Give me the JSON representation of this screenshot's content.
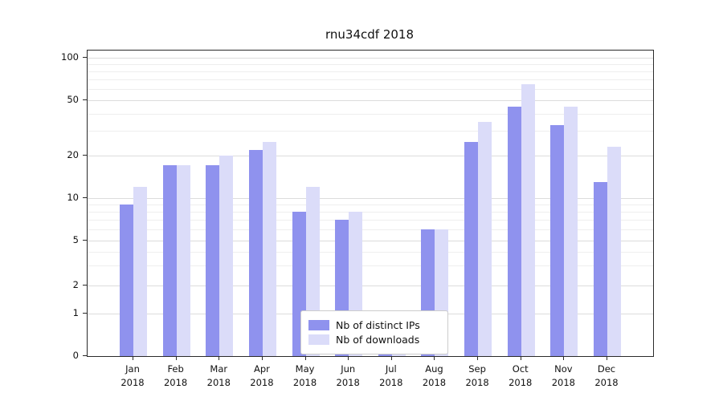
{
  "chart_data": {
    "type": "bar",
    "title": "rnu34cdf 2018",
    "yaxis_scale": "symlog",
    "grid": true,
    "legend_position": "bottom-center-inside",
    "categories": [
      "Jan",
      "Feb",
      "Mar",
      "Apr",
      "May",
      "Jun",
      "Jul",
      "Aug",
      "Sep",
      "Oct",
      "Nov",
      "Dec"
    ],
    "x_year": "2018",
    "yticks": [
      0,
      1,
      2,
      5,
      10,
      20,
      50,
      100
    ],
    "ylim": [
      0,
      100
    ],
    "series": [
      {
        "name": "Nb of distinct IPs",
        "color": "#8f92ee",
        "values": [
          9,
          17,
          17,
          22,
          8,
          7,
          1,
          6,
          25,
          45,
          33,
          13
        ]
      },
      {
        "name": "Nb of downloads",
        "color": "#dbdcf9",
        "values": [
          12,
          17,
          20,
          25,
          12,
          8,
          1,
          6,
          35,
          65,
          45,
          23
        ]
      }
    ]
  }
}
